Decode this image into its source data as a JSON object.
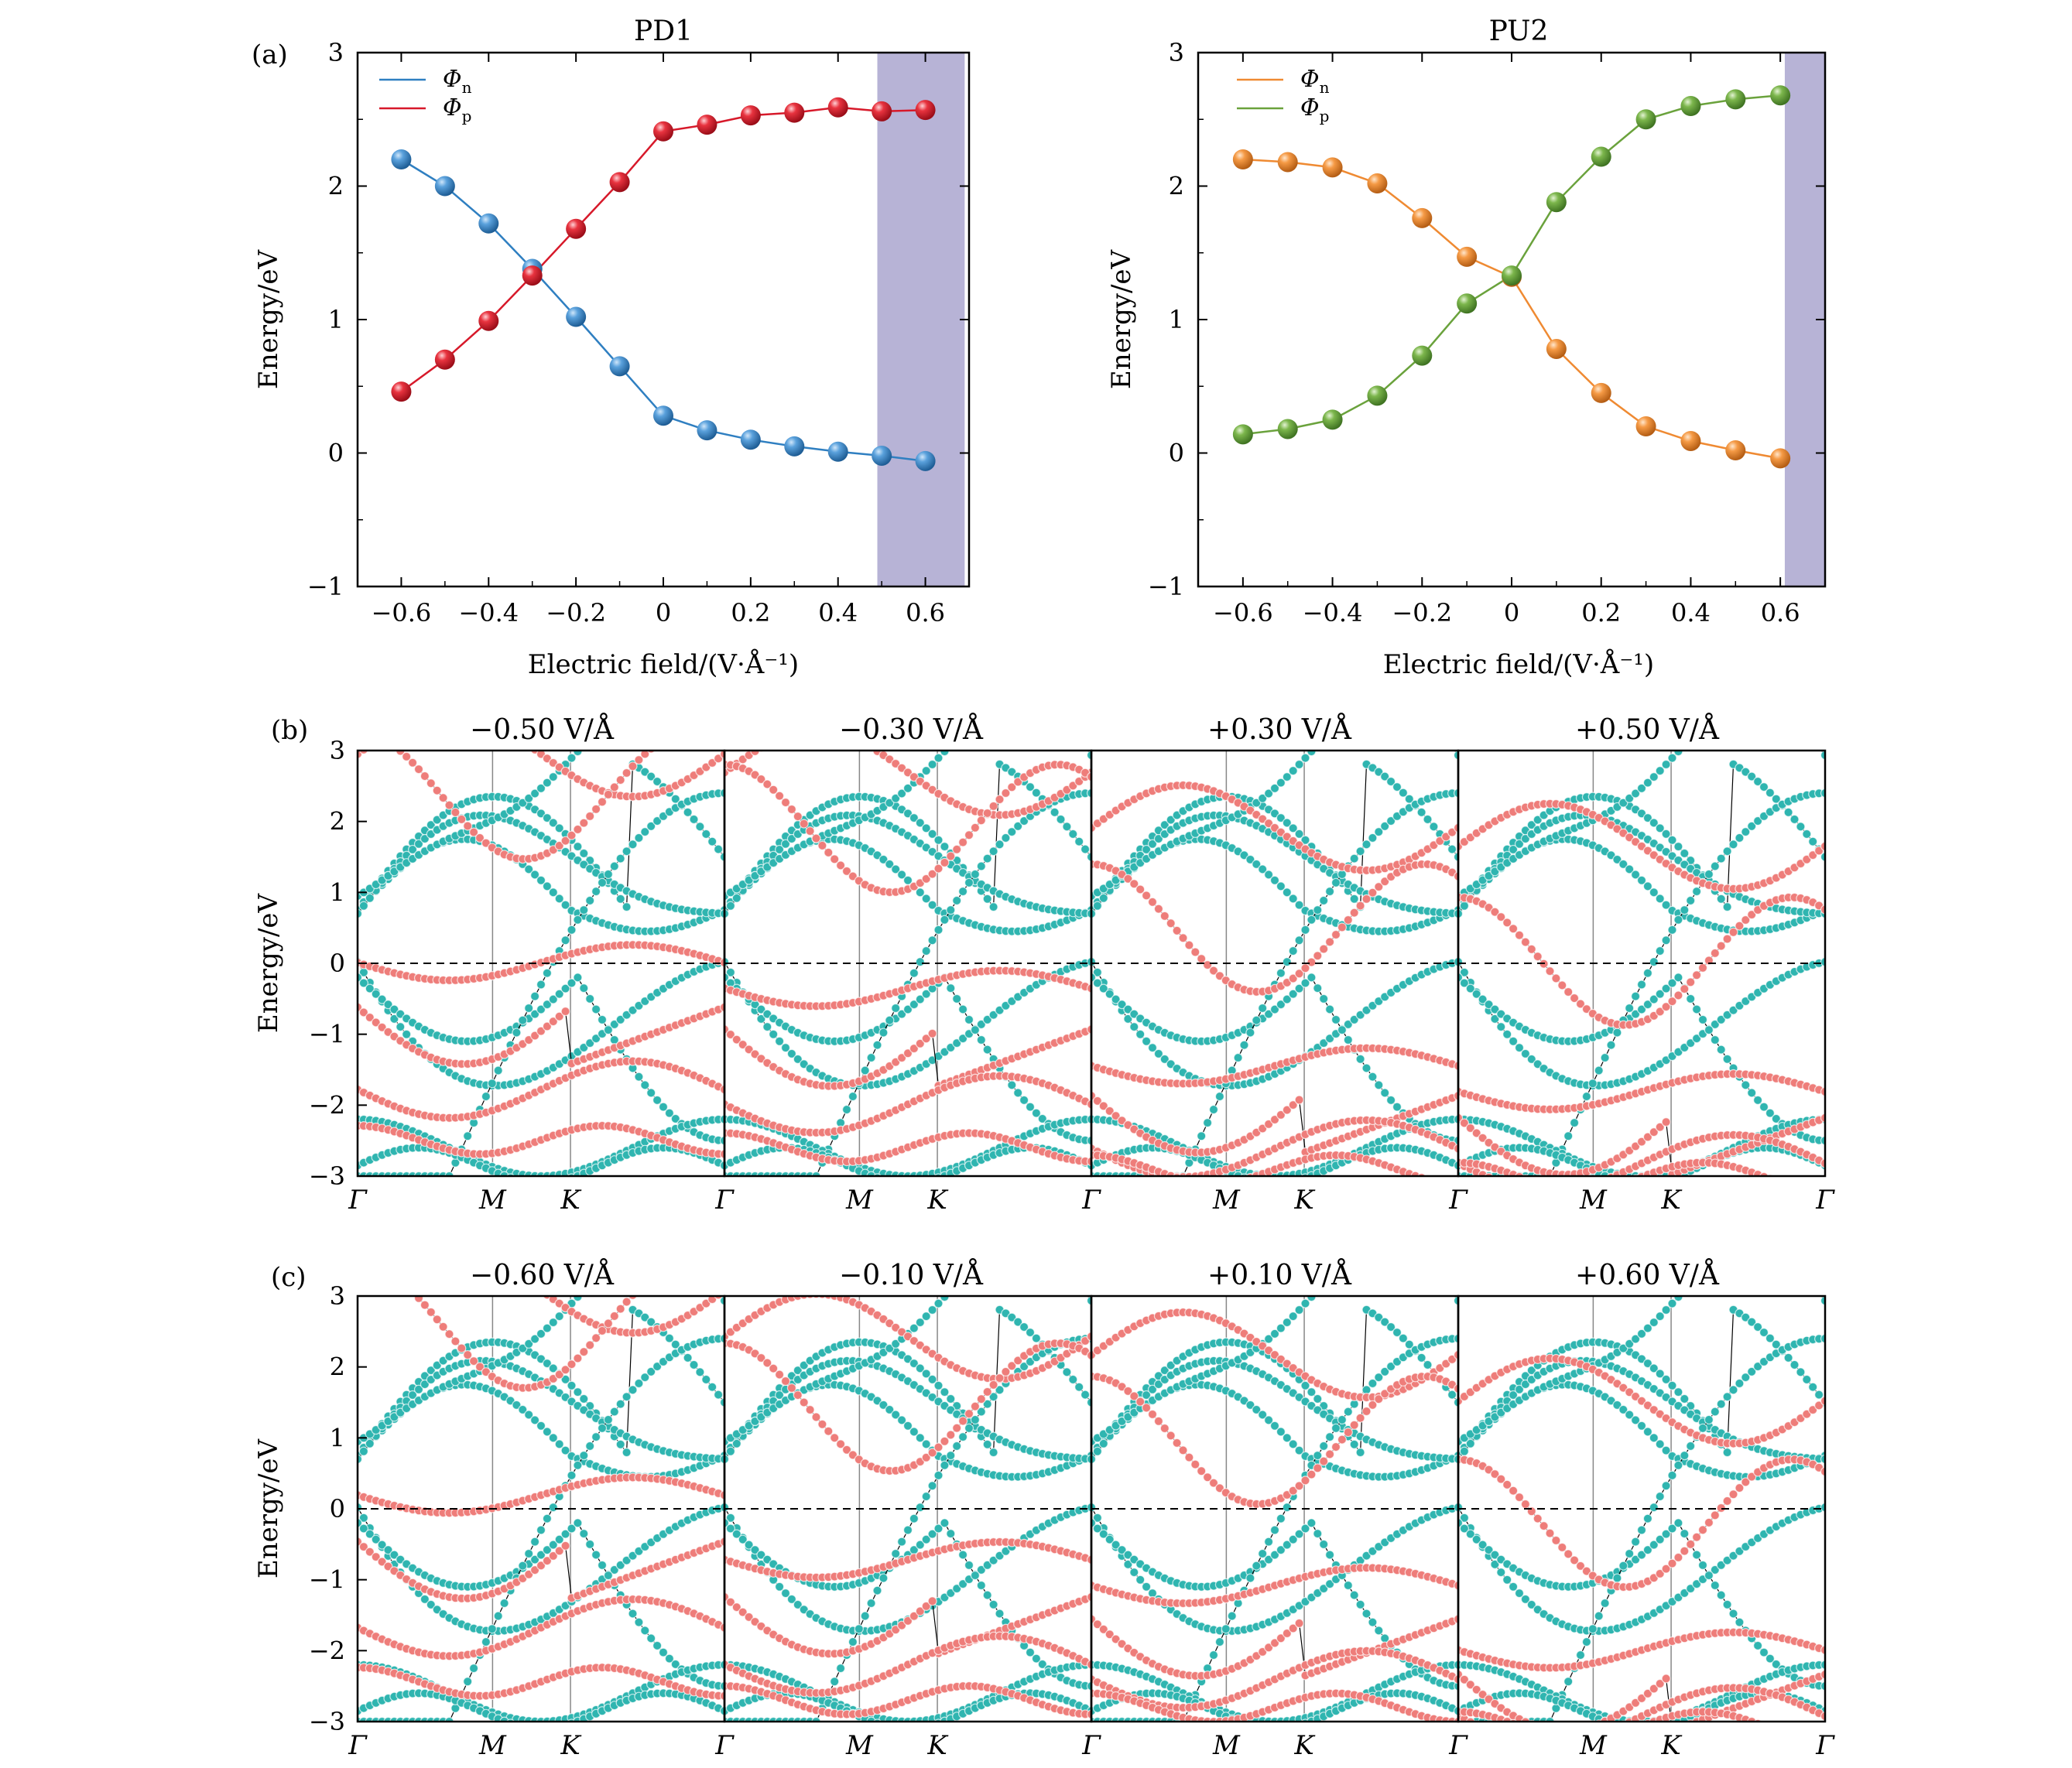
{
  "figure": {
    "panel_labels": [
      "(a)",
      "(b)",
      "(c)"
    ]
  },
  "chart_data": [
    {
      "type": "line",
      "panel": "a",
      "title": "PD1",
      "xlabel": "Electric field/(V·Å⁻¹)",
      "ylabel": "Energy/eV",
      "xlim": [
        -0.7,
        0.7
      ],
      "ylim": [
        -1,
        3
      ],
      "xticks": [
        -0.6,
        -0.4,
        -0.2,
        0,
        0.2,
        0.4,
        0.6
      ],
      "xtick_labels": [
        "−0.6",
        "−0.4",
        "−0.2",
        "0",
        "0.2",
        "0.4",
        "0.6"
      ],
      "yticks": [
        -1,
        0,
        1,
        2,
        3
      ],
      "ytick_labels": [
        "−1",
        "0",
        "1",
        "2",
        "3"
      ],
      "shaded_region": {
        "x": [
          0.49,
          0.69
        ],
        "color": "#b7b3d6"
      },
      "legend_position": "top-left",
      "x": [
        -0.6,
        -0.5,
        -0.4,
        -0.3,
        -0.2,
        -0.1,
        0,
        0.1,
        0.2,
        0.3,
        0.4,
        0.5,
        0.6
      ],
      "series": [
        {
          "name": "Φ",
          "subscript": "n",
          "color": "#2f7fc1",
          "values": [
            2.2,
            2.0,
            1.72,
            1.38,
            1.02,
            0.65,
            0.28,
            0.17,
            0.1,
            0.05,
            0.01,
            -0.02,
            -0.06
          ]
        },
        {
          "name": "Φ",
          "subscript": "p",
          "color": "#d7192a",
          "values": [
            0.46,
            0.7,
            0.99,
            1.33,
            1.68,
            2.03,
            2.41,
            2.46,
            2.53,
            2.55,
            2.59,
            2.56,
            2.57
          ]
        }
      ]
    },
    {
      "type": "line",
      "panel": "a",
      "title": "PU2",
      "xlabel": "Electric field/(V·Å⁻¹)",
      "ylabel": "Energy/eV",
      "xlim": [
        -0.7,
        0.7
      ],
      "ylim": [
        -1,
        3
      ],
      "xticks": [
        -0.6,
        -0.4,
        -0.2,
        0,
        0.2,
        0.4,
        0.6
      ],
      "xtick_labels": [
        "−0.6",
        "−0.4",
        "−0.2",
        "0",
        "0.2",
        "0.4",
        "0.6"
      ],
      "yticks": [
        -1,
        0,
        1,
        2,
        3
      ],
      "ytick_labels": [
        "−1",
        "0",
        "1",
        "2",
        "3"
      ],
      "shaded_region": {
        "x": [
          0.61,
          0.7
        ],
        "color": "#b7b3d6"
      },
      "legend_position": "top-left",
      "x": [
        -0.6,
        -0.5,
        -0.4,
        -0.3,
        -0.2,
        -0.1,
        0,
        0.1,
        0.2,
        0.3,
        0.4,
        0.5,
        0.6
      ],
      "series": [
        {
          "name": "Φ",
          "subscript": "n",
          "color": "#ef8a32",
          "values": [
            2.2,
            2.18,
            2.14,
            2.02,
            1.76,
            1.47,
            1.32,
            0.78,
            0.45,
            0.2,
            0.09,
            0.02,
            -0.04
          ]
        },
        {
          "name": "Φ",
          "subscript": "p",
          "color": "#6aa23c",
          "values": [
            0.14,
            0.18,
            0.25,
            0.43,
            0.73,
            1.12,
            1.33,
            1.88,
            2.22,
            2.5,
            2.6,
            2.65,
            2.68
          ]
        }
      ]
    },
    {
      "type": "line",
      "panel": "b",
      "subtype": "band-structure",
      "ylabel": "Energy/eV",
      "ylim": [
        -3,
        3
      ],
      "yticks": [
        -3,
        -2,
        -1,
        0,
        1,
        2,
        3
      ],
      "ytick_labels": [
        "−3",
        "−2",
        "−1",
        "0",
        "1",
        "2",
        "3"
      ],
      "kpath_labels": [
        "Γ",
        "M",
        "K",
        "Γ"
      ],
      "kpath_positions": [
        0,
        0.3679,
        0.5803,
        1
      ],
      "fermi_level": 0,
      "colors": {
        "layer_a": "#2fb5b0",
        "layer_b": "#ee7d7a"
      },
      "subplots": [
        {
          "title": "−0.50 V/Å",
          "field": -0.5
        },
        {
          "title": "−0.30 V/Å",
          "field": -0.3
        },
        {
          "title": "+0.30 V/Å",
          "field": 0.3
        },
        {
          "title": "+0.50 V/Å",
          "field": 0.5
        }
      ]
    },
    {
      "type": "line",
      "panel": "c",
      "subtype": "band-structure",
      "ylabel": "Energy/eV",
      "ylim": [
        -3,
        3
      ],
      "yticks": [
        -3,
        -2,
        -1,
        0,
        1,
        2,
        3
      ],
      "ytick_labels": [
        "−3",
        "−2",
        "−1",
        "0",
        "1",
        "2",
        "3"
      ],
      "kpath_labels": [
        "Γ",
        "M",
        "K",
        "Γ"
      ],
      "kpath_positions": [
        0,
        0.3679,
        0.5803,
        1
      ],
      "fermi_level": 0,
      "colors": {
        "layer_a": "#2fb5b0",
        "layer_b": "#ee7d7a"
      },
      "subplots": [
        {
          "title": "−0.60 V/Å",
          "field": -0.6
        },
        {
          "title": "−0.10 V/Å",
          "field": -0.1
        },
        {
          "title": "+0.10 V/Å",
          "field": 0.1
        },
        {
          "title": "+0.60 V/Å",
          "field": 0.6
        }
      ]
    }
  ]
}
